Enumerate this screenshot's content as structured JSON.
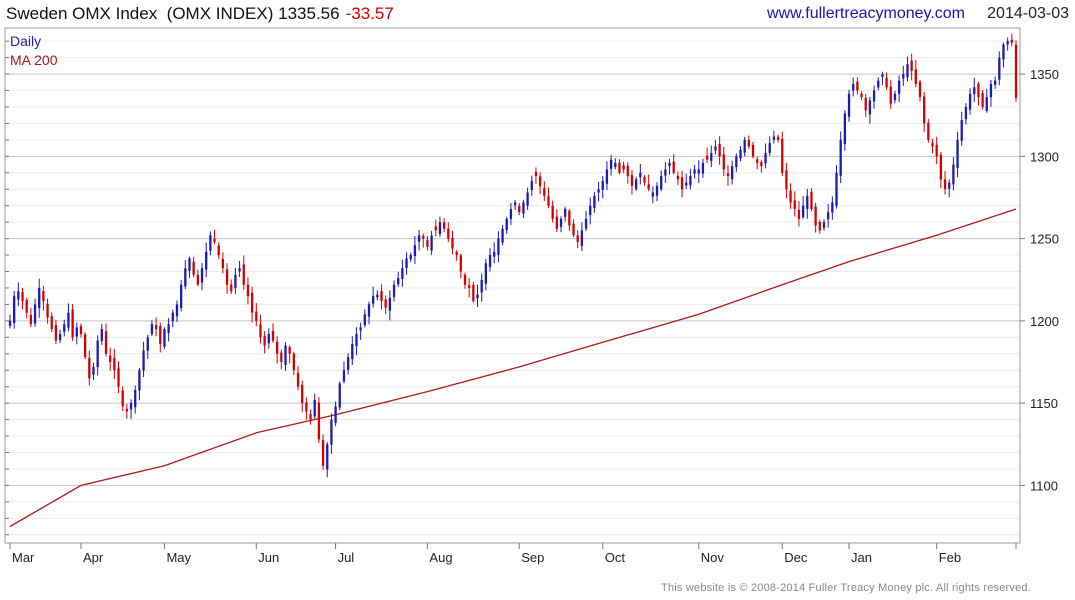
{
  "header": {
    "name": "Sweden OMX Index",
    "ticker": "(OMX INDEX)",
    "last": "1335.56",
    "change": "-33.57",
    "website": "www.fullertreacymoney.com",
    "date": "2014-03-03"
  },
  "legend": {
    "daily": "Daily",
    "ma": "MA 200"
  },
  "footer": "This website is © 2008-2014 Fuller Treacy Money plc. All rights reserved.",
  "colors": {
    "up": "#1a1ab4",
    "down": "#d40000",
    "ma": "#a81c1c",
    "grid": "#cfcfcf"
  },
  "chart_data": {
    "type": "candlestick",
    "title": "Sweden OMX Index (OMX INDEX) 1335.56 -33.57",
    "x_tick_labels": [
      "Mar",
      "Apr",
      "May",
      "Jun",
      "Jul",
      "Aug",
      "Sep",
      "Oct",
      "Nov",
      "Dec",
      "Jan",
      "Feb"
    ],
    "y_ticks": [
      1100,
      1150,
      1200,
      1250,
      1300,
      1350
    ],
    "ylim": [
      1065,
      1378
    ],
    "grid": true,
    "legend": [
      "Daily",
      "MA 200"
    ],
    "legend_position": "top-left",
    "daily_close_by_month": [
      {
        "month": "Mar",
        "values": [
          1200,
          1215,
          1218,
          1212,
          1205,
          1198,
          1210,
          1220,
          1212,
          1202,
          1195,
          1188,
          1192,
          1198,
          1205,
          1190,
          1196
        ]
      },
      {
        "month": "Apr",
        "values": [
          1192,
          1178,
          1165,
          1172,
          1188,
          1195,
          1180,
          1175,
          1170,
          1160,
          1148,
          1145,
          1150,
          1158,
          1170,
          1182,
          1190,
          1198,
          1195,
          1186
        ]
      },
      {
        "month": "May",
        "values": [
          1195,
          1198,
          1205,
          1210,
          1222,
          1232,
          1238,
          1228,
          1222,
          1232,
          1242,
          1252,
          1248,
          1240,
          1232,
          1222,
          1218,
          1228,
          1232,
          1222,
          1215,
          1205
        ]
      },
      {
        "month": "Jun",
        "values": [
          1200,
          1190,
          1185,
          1192,
          1188,
          1180,
          1175,
          1185,
          1180,
          1170,
          1160,
          1150,
          1145,
          1140,
          1152,
          1128,
          1112,
          1125,
          1140
        ]
      },
      {
        "month": "Jul",
        "values": [
          1148,
          1162,
          1170,
          1178,
          1186,
          1192,
          1196,
          1204,
          1210,
          1215,
          1216,
          1212,
          1208,
          1214,
          1222,
          1226,
          1232,
          1238,
          1240,
          1246,
          1252,
          1250
        ]
      },
      {
        "month": "Aug",
        "values": [
          1245,
          1252,
          1255,
          1260,
          1256,
          1250,
          1244,
          1240,
          1230,
          1222,
          1220,
          1212,
          1216,
          1225,
          1235,
          1240,
          1242,
          1250,
          1256,
          1262,
          1268,
          1272
        ]
      },
      {
        "month": "Sep",
        "values": [
          1266,
          1272,
          1278,
          1285,
          1288,
          1282,
          1276,
          1270,
          1262,
          1256,
          1262,
          1268,
          1258,
          1252,
          1248,
          1255,
          1262,
          1270,
          1276,
          1280
        ]
      },
      {
        "month": "Oct",
        "values": [
          1285,
          1292,
          1298,
          1296,
          1290,
          1292,
          1288,
          1282,
          1286,
          1290,
          1284,
          1280,
          1278,
          1282,
          1288,
          1292,
          1296,
          1290,
          1286,
          1280,
          1284,
          1288,
          1292
        ]
      },
      {
        "month": "Nov",
        "values": [
          1292,
          1296,
          1298,
          1302,
          1306,
          1300,
          1292,
          1288,
          1294,
          1300,
          1304,
          1310,
          1306,
          1300,
          1296,
          1294,
          1302,
          1308,
          1312,
          1310
        ]
      },
      {
        "month": "Dec",
        "values": [
          1290,
          1280,
          1272,
          1268,
          1262,
          1270,
          1276,
          1268,
          1258,
          1255,
          1260,
          1266,
          1272,
          1290,
          1310,
          1326
        ]
      },
      {
        "month": "Jan",
        "values": [
          1338,
          1344,
          1340,
          1336,
          1328,
          1334,
          1340,
          1346,
          1350,
          1342,
          1332,
          1338,
          1346,
          1350,
          1356,
          1352,
          1344,
          1336,
          1320,
          1310,
          1306
        ]
      },
      {
        "month": "Feb",
        "values": [
          1300,
          1286,
          1280,
          1284,
          1295,
          1310,
          1322,
          1330,
          1338,
          1342,
          1336,
          1330,
          1336,
          1344,
          1346,
          1360,
          1368,
          1370,
          1369,
          1335.56
        ]
      }
    ],
    "ma200": [
      {
        "x": "Mar",
        "value": 1075
      },
      {
        "x": "Apr",
        "value": 1100
      },
      {
        "x": "May",
        "value": 1112
      },
      {
        "x": "Jun",
        "value": 1132
      },
      {
        "x": "Jul",
        "value": 1143
      },
      {
        "x": "Aug",
        "value": 1157
      },
      {
        "x": "Sep",
        "value": 1172
      },
      {
        "x": "Oct",
        "value": 1187
      },
      {
        "x": "Nov",
        "value": 1204
      },
      {
        "x": "Dec",
        "value": 1222
      },
      {
        "x": "Jan",
        "value": 1236
      },
      {
        "x": "Feb",
        "value": 1252
      },
      {
        "x": "Mar",
        "value": 1268
      }
    ],
    "last_close": 1335.56,
    "change": -33.57
  }
}
